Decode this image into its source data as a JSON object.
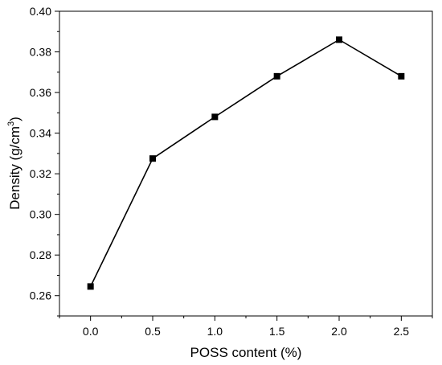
{
  "chart_data": {
    "type": "line",
    "title": "",
    "xlabel": "POSS content (%)",
    "ylabel_main": "Density (g/cm",
    "ylabel_sup": "3",
    "ylabel_close": ")",
    "x": [
      0.0,
      0.5,
      1.0,
      1.5,
      2.0,
      2.5
    ],
    "series": [
      {
        "values": [
          0.2645,
          0.3275,
          0.348,
          0.368,
          0.386,
          0.368
        ],
        "marker": "square",
        "color": "#000000"
      }
    ],
    "xlim": [
      -0.25,
      2.75
    ],
    "ylim": [
      0.25,
      0.4
    ],
    "xticks": [
      0.0,
      0.5,
      1.0,
      1.5,
      2.0,
      2.5
    ],
    "xtick_labels": [
      "0.0",
      "0.5",
      "1.0",
      "1.5",
      "2.0",
      "2.5"
    ],
    "yticks": [
      0.26,
      0.28,
      0.3,
      0.32,
      0.34,
      0.36,
      0.38,
      0.4
    ],
    "ytick_labels": [
      "0.26",
      "0.28",
      "0.30",
      "0.32",
      "0.34",
      "0.36",
      "0.38",
      "0.40"
    ],
    "grid": false,
    "legend": "none"
  }
}
